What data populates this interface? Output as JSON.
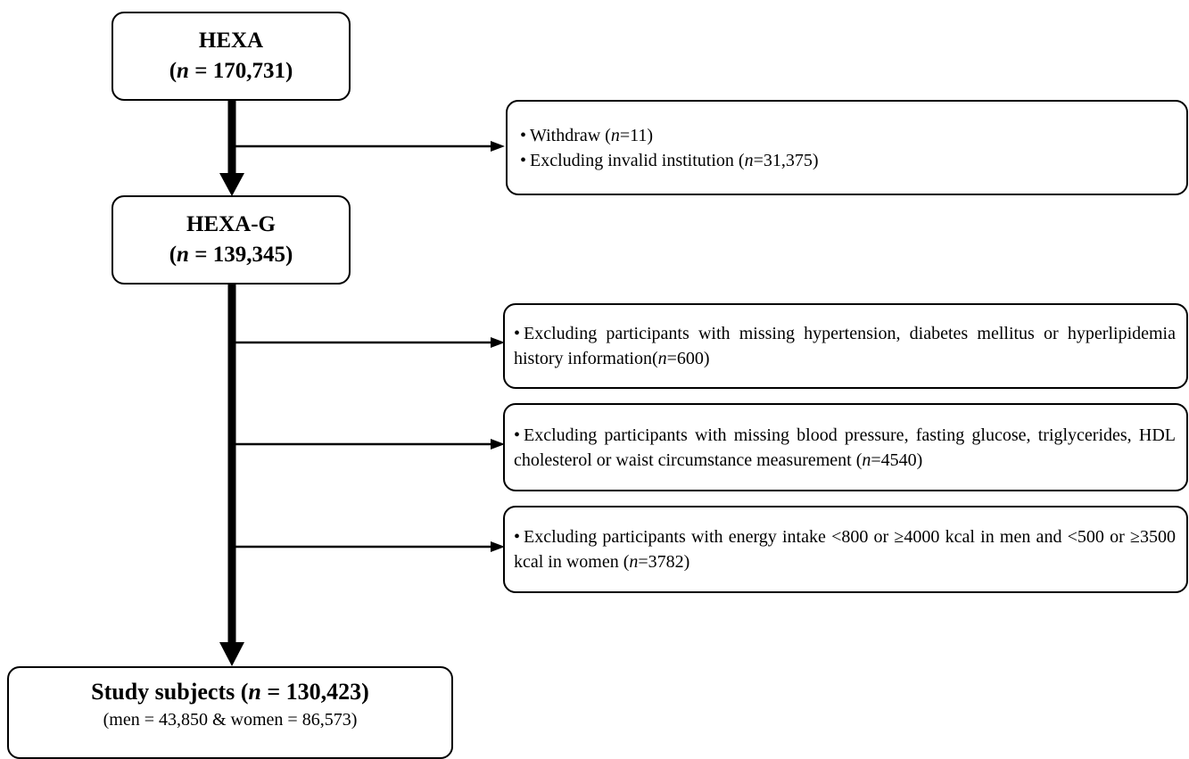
{
  "boxes": {
    "hexa": {
      "title": "HEXA",
      "n_prefix": "(",
      "n_symbol": "n",
      "n_value": " = 170,731)"
    },
    "hexa_g": {
      "title": "HEXA-G",
      "n_prefix": "(",
      "n_symbol": "n",
      "n_value": " = 139,345)"
    },
    "final": {
      "title_prefix": "Study subjects (",
      "n_symbol": "n",
      "title_suffix": " = 130,423)",
      "subtitle": "(men = 43,850 & women = 86,573)"
    }
  },
  "exclusions": {
    "first": {
      "bullet": "•",
      "line1_text": "Withdraw (",
      "line1_n": "n",
      "line1_value": "=11)",
      "line2_text": "Excluding invalid institution (",
      "line2_n": "n",
      "line2_value": "=31,375)"
    },
    "second": {
      "bullet": "•",
      "text": "Excluding participants with missing hypertension, diabetes mellitus or hyperlipidemia history information(",
      "n": "n",
      "value": "=600)"
    },
    "third": {
      "bullet": "•",
      "text": "Excluding participants with missing blood pressure, fasting glucose, triglycerides, HDL cholesterol or waist circumstance measurement (",
      "n": "n",
      "value": "=4540)"
    },
    "fourth": {
      "bullet": "•",
      "text": "Excluding participants with energy intake <800 or ≥4000 kcal in men and <500 or ≥3500 kcal in women (",
      "n": "n",
      "value": "=3782)"
    }
  }
}
